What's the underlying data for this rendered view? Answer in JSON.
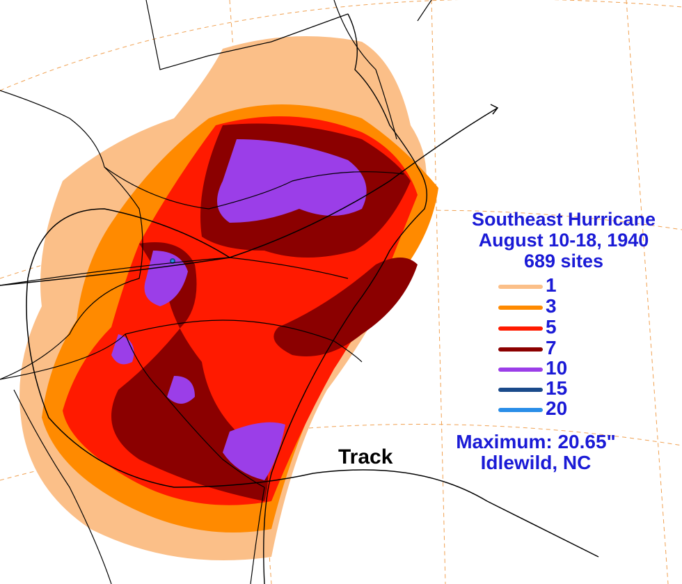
{
  "title": {
    "line1": "Southeast Hurricane",
    "line2": "August 10-18, 1940",
    "line3": "689 sites"
  },
  "legend": [
    {
      "label": "1",
      "color": "#fbbf88"
    },
    {
      "label": "3",
      "color": "#ff8a00"
    },
    {
      "label": "5",
      "color": "#ff1a00"
    },
    {
      "label": "7",
      "color": "#8b0000"
    },
    {
      "label": "10",
      "color": "#9b3ee8"
    },
    {
      "label": "15",
      "color": "#1a4a8a"
    },
    {
      "label": "20",
      "color": "#2a8ee8"
    }
  ],
  "track_label": "Track",
  "maximum": {
    "line1": "Maximum:  20.65\"",
    "line2": "Idlewild, NC"
  },
  "colors": {
    "text": "#1a1ad6",
    "coast": "#000000",
    "graticule": "#f0a050",
    "background": "#ffffff"
  }
}
